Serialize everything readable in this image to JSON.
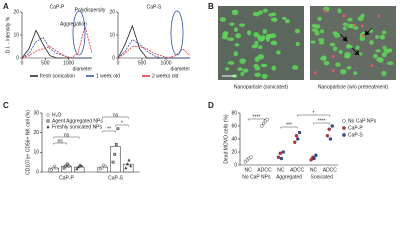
{
  "figure": {
    "panel_labels": [
      "A",
      "B",
      "C",
      "D"
    ],
    "image_captions": [
      "Nanoparticle (sonicated)",
      "Nanoparticle (w/o pretreatment)"
    ]
  },
  "chart_data": [
    {
      "type": "line",
      "title": "CaP-P",
      "y_label": "D.I. - intensity %",
      "x_label": "diameter",
      "x": [
        0,
        150,
        300,
        450,
        600,
        750,
        900,
        1050,
        1200,
        1350,
        1500
      ],
      "xlim": [
        0,
        1500
      ],
      "xticks": [
        0,
        500,
        1000
      ],
      "ylim": [
        0,
        20
      ],
      "yticks": [
        0,
        10,
        20
      ],
      "series": [
        {
          "name": "fresh sonication",
          "color": "#222222",
          "values": [
            0,
            4,
            12,
            6,
            1,
            0,
            0,
            0,
            0,
            0,
            0
          ]
        },
        {
          "name": "1 week old",
          "color": "#2b4fa8",
          "values": [
            0,
            2,
            7,
            9,
            4,
            2,
            1,
            0,
            0,
            0,
            0
          ]
        },
        {
          "name": "2 weeks old",
          "color": "#e03030",
          "values": [
            0,
            1,
            3,
            4,
            5,
            3,
            1,
            0,
            2,
            14,
            2
          ]
        }
      ],
      "annotations": [
        "Aggregation",
        "Polydispersity"
      ]
    },
    {
      "type": "line",
      "title": "CaP-S",
      "x_label": "diameter",
      "x": [
        0,
        150,
        300,
        450,
        600,
        750,
        900,
        1050,
        1200,
        1350,
        1500
      ],
      "xlim": [
        0,
        1500
      ],
      "xticks": [
        0,
        500,
        1000
      ],
      "ylim": [
        0,
        20
      ],
      "yticks": [
        0,
        10,
        20
      ],
      "series": [
        {
          "color": "#222222",
          "values": [
            0,
            6,
            14,
            4,
            0,
            0,
            0,
            0,
            0,
            0,
            0
          ]
        },
        {
          "color": "#2b4fa8",
          "values": [
            0,
            3,
            8,
            6,
            3,
            1,
            0,
            0,
            0,
            0,
            0
          ]
        },
        {
          "color": "#e03030",
          "values": [
            0,
            2,
            5,
            5,
            4,
            2,
            1,
            0,
            1,
            4,
            1
          ]
        }
      ]
    },
    {
      "type": "bar",
      "y_label": "CD107a+ CD56+ NK cell (%)",
      "categories": [
        "CaP-P",
        "CaP-S"
      ],
      "ylim": [
        0,
        30
      ],
      "yticks": [
        0,
        10,
        20,
        30
      ],
      "series": [
        {
          "name": "H₂O",
          "color": "#ffffff",
          "marker": "circle",
          "values": [
            2,
            2.5
          ],
          "points": [
            [
              1,
              2,
              3,
              2
            ],
            [
              1.5,
              2,
              3.5,
              3
            ]
          ]
        },
        {
          "name": "Agent Aggregated NPs",
          "color": "#9e9e9e",
          "marker": "square",
          "values": [
            3,
            13
          ],
          "points": [
            [
              2,
              3,
              4,
              3
            ],
            [
              5,
              9,
              14,
              22
            ]
          ]
        },
        {
          "name": "Freshly sonicated NPs",
          "color": "#555555",
          "marker": "triangle",
          "values": [
            2.5,
            4
          ],
          "points": [
            [
              1.5,
              2.5,
              3.5,
              3
            ],
            [
              2,
              4,
              6,
              3
            ]
          ]
        }
      ],
      "annotations": [
        "ns",
        "ns",
        "**",
        "*",
        "ns"
      ]
    },
    {
      "type": "scatter",
      "y_label": "Dead MOVO cells (%)",
      "categories": [
        "NC",
        "ADCC",
        "NC",
        "ADCC",
        "NC",
        "ADCC"
      ],
      "groups": [
        "No CaP NPs",
        "Aggregated",
        "Sonicated"
      ],
      "ylim": [
        0,
        80
      ],
      "yticks": [
        0,
        20,
        40,
        60,
        80
      ],
      "series": [
        {
          "name": "No CaP NPs",
          "color": "#ffffff",
          "values": [
            [
              5,
              8,
              10,
              12
            ],
            [
              60,
              64,
              68,
              70
            ],
            null,
            null,
            null,
            null
          ]
        },
        {
          "name": "CaP-P",
          "color": "#e03030",
          "values": [
            null,
            null,
            [
              12,
              18
            ],
            [
              35,
              45
            ],
            [
              8,
              12
            ],
            [
              45,
              55
            ]
          ]
        },
        {
          "name": "CaP-S",
          "color": "#2b4fa8",
          "values": [
            null,
            null,
            [
              10,
              20
            ],
            [
              40,
              50
            ],
            [
              10,
              15
            ],
            [
              40,
              60
            ]
          ]
        }
      ],
      "annotations": [
        "****",
        "*",
        "***",
        "****"
      ]
    }
  ]
}
